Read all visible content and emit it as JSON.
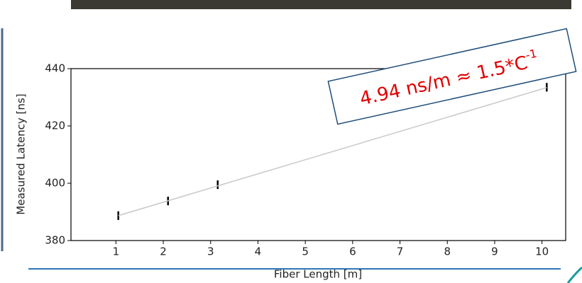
{
  "chart_data": {
    "type": "errorbar",
    "xlabel": "Fiber Length [m]",
    "ylabel": "Measured Latency [ns]",
    "series": [
      {
        "color": "#000000",
        "x": [
          1.05,
          2.1,
          3.15,
          10.1
        ],
        "values": [
          388.7,
          393.8,
          399.5,
          433.5
        ],
        "errors": [
          1.5,
          1.5,
          1.5,
          1.5
        ]
      }
    ],
    "fit": {
      "color": "#c8c8c8",
      "x": [
        1.05,
        10.1
      ],
      "values": [
        388.7,
        433.4
      ]
    },
    "xlim": [
      0.05,
      10.5
    ],
    "ylim": [
      380,
      440
    ],
    "xticks": [
      1,
      2,
      3,
      4,
      5,
      6,
      7,
      8,
      9,
      10
    ],
    "yticks": [
      380,
      400,
      420,
      440
    ],
    "annotation": {
      "text": "4.94 ns/m ≈ 1.5*C",
      "superscript": "-1",
      "color": "#e00000"
    }
  }
}
